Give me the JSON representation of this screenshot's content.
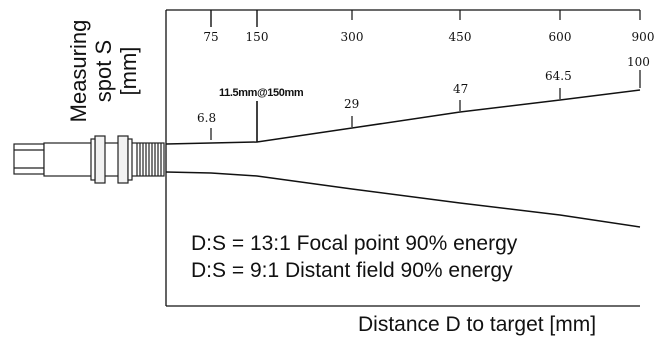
{
  "y_axis": {
    "line1": "Measuring",
    "line2": "spot S",
    "line3": "[mm]"
  },
  "x_axis": {
    "label": "Distance D to target [mm]",
    "ticks": [
      "75",
      "150",
      "300",
      "450",
      "600",
      "900"
    ]
  },
  "spots": [
    {
      "label": "6.8",
      "at_distance": "75"
    },
    {
      "label": "11.5mm@150mm",
      "at_distance": "150"
    },
    {
      "label": "29",
      "at_distance": "300"
    },
    {
      "label": "47",
      "at_distance": "450"
    },
    {
      "label": "64.5",
      "at_distance": "600"
    },
    {
      "label": "100",
      "at_distance": "900"
    }
  ],
  "notes": {
    "line1": "D:S = 13:1 Focal point 90% energy",
    "line2": "D:S = 9:1 Distant field 90% energy"
  }
}
